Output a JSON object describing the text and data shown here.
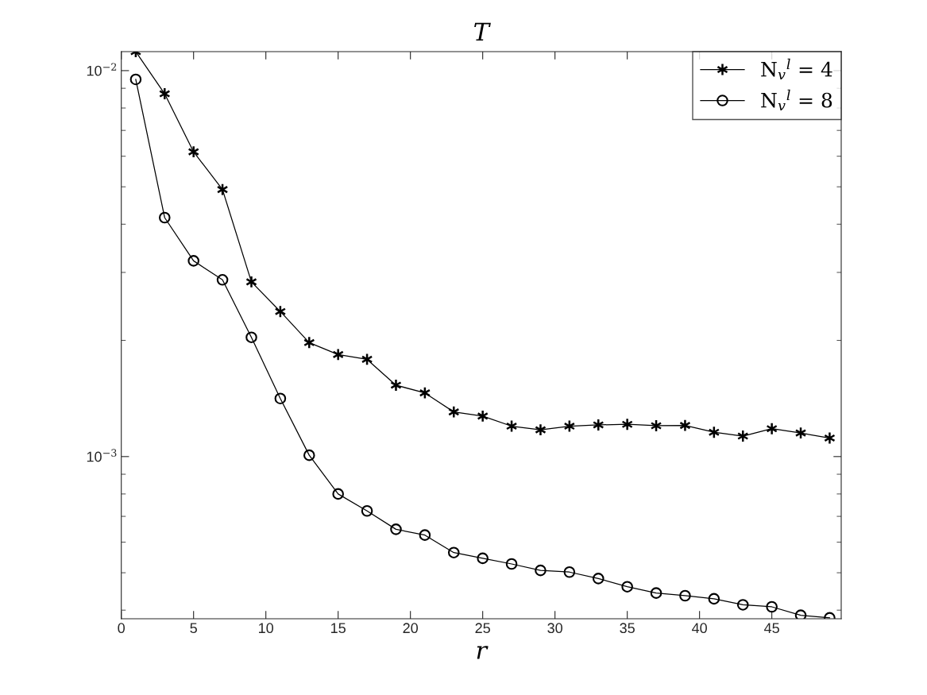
{
  "chart_data": {
    "type": "line",
    "title": "T",
    "xlabel": "r",
    "x": [
      1,
      3,
      5,
      7,
      9,
      11,
      13,
      15,
      17,
      19,
      21,
      23,
      25,
      27,
      29,
      31,
      33,
      35,
      37,
      39,
      41,
      43,
      45,
      47,
      49
    ],
    "series": [
      {
        "name": "N$_{v}$$^{l}$ = 4",
        "color": "#000000",
        "marker": "cross",
        "values": [
          0.0112,
          0.00871,
          0.00616,
          0.00492,
          0.002835,
          0.002376,
          0.001974,
          0.001838,
          0.001786,
          0.001531,
          0.001462,
          0.001305,
          0.001273,
          0.001199,
          0.001173,
          0.001199,
          0.001208,
          0.001212,
          0.001202,
          0.001204,
          0.001156,
          0.00113,
          0.001181,
          0.001151,
          0.001117
        ]
      },
      {
        "name": "N$_{v}$$^{l}$ = 8",
        "color": "#000000",
        "marker": "circle",
        "values": [
          0.00949,
          0.00416,
          0.003215,
          0.00287,
          0.002037,
          0.001414,
          0.001008,
          0.0008,
          0.000723,
          0.000648,
          0.000626,
          0.000564,
          0.000545,
          0.000527,
          0.000507,
          0.000502,
          0.000483,
          0.00046,
          0.000443,
          0.000436,
          0.000428,
          0.000413,
          0.000408,
          0.000388,
          0.000382
        ]
      }
    ],
    "log": "y",
    "xlim": [
      0,
      49.8
    ],
    "xticks": [
      0,
      5,
      10,
      15,
      20,
      25,
      30,
      35,
      40,
      45
    ],
    "ylim": [
      0.00038,
      0.0112
    ],
    "yticks": [
      {
        "value": 0.001,
        "label": "10$^{−3}$"
      },
      {
        "value": 0.01,
        "label": "10$^{−2}$"
      }
    ],
    "line_style": "solid",
    "grid": false,
    "legend": "top right"
  }
}
